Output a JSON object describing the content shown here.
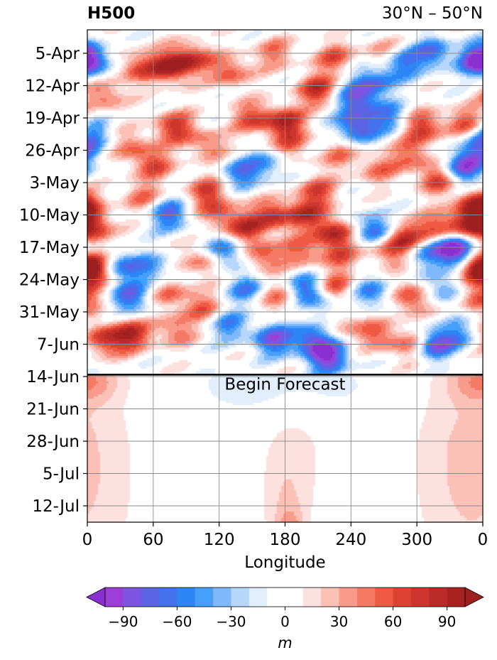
{
  "chart_data": {
    "type": "heatmap",
    "title_left": "H500",
    "title_right": "30°N – 50°N",
    "xlabel": "Longitude",
    "x_ticks": [
      "0",
      "60",
      "120",
      "180",
      "240",
      "300",
      "0"
    ],
    "xlim": [
      0,
      360
    ],
    "y_ticks": [
      "5-Apr",
      "12-Apr",
      "19-Apr",
      "26-Apr",
      "3-May",
      "10-May",
      "17-May",
      "24-May",
      "31-May",
      "7-Jun",
      "14-Jun",
      "21-Jun",
      "28-Jun",
      "5-Jul",
      "12-Jul"
    ],
    "forecast_label": "Begin Forecast",
    "colorbar": {
      "label": "m",
      "ticks": [
        "−90",
        "−60",
        "−30",
        "0",
        "30",
        "60",
        "90"
      ],
      "levels": [
        -100,
        -90,
        -80,
        -70,
        -60,
        -50,
        -40,
        -30,
        -20,
        -10,
        10,
        20,
        30,
        40,
        50,
        60,
        70,
        80,
        90,
        100
      ],
      "colors": [
        "#9b3fd8",
        "#7d55e0",
        "#5c64e6",
        "#4472ef",
        "#2c86f5",
        "#46a0fb",
        "#7fb9fb",
        "#b6d6fb",
        "#e2eefc",
        "#ffffff",
        "#fde1df",
        "#fbc0b6",
        "#f89b8a",
        "#f57a66",
        "#ef5a44",
        "#dd4334",
        "#cc362c",
        "#ba2c27",
        "#a72220"
      ],
      "extend_low": "#8a2fd0",
      "extend_high": "#9e1f1f"
    },
    "blobs": [
      {
        "lon": 0,
        "day": 1,
        "v": -75
      },
      {
        "lon": 45,
        "day": 3,
        "v": 55
      },
      {
        "lon": 75,
        "day": 3,
        "v": 92
      },
      {
        "lon": 95,
        "day": 1,
        "v": 70
      },
      {
        "lon": 15,
        "day": 9,
        "v": 55
      },
      {
        "lon": 130,
        "day": 4,
        "v": 60
      },
      {
        "lon": 170,
        "day": 0,
        "v": 45
      },
      {
        "lon": 225,
        "day": 1,
        "v": 55
      },
      {
        "lon": 270,
        "day": 0,
        "v": 45
      },
      {
        "lon": 285,
        "day": 2,
        "v": -70
      },
      {
        "lon": 315,
        "day": 0,
        "v": -65
      },
      {
        "lon": 358,
        "day": 2,
        "v": -60
      },
      {
        "lon": 260,
        "day": 6,
        "v": -65
      },
      {
        "lon": 210,
        "day": 8,
        "v": 80
      },
      {
        "lon": 245,
        "day": 10,
        "v": -80
      },
      {
        "lon": 180,
        "day": 15,
        "v": 85
      },
      {
        "lon": 150,
        "day": 14,
        "v": 60
      },
      {
        "lon": 80,
        "day": 16,
        "v": 75
      },
      {
        "lon": 110,
        "day": 20,
        "v": 50
      },
      {
        "lon": 245,
        "day": 16,
        "v": -85
      },
      {
        "lon": 275,
        "day": 14,
        "v": -55
      },
      {
        "lon": 305,
        "day": 16,
        "v": 75
      },
      {
        "lon": 345,
        "day": 15,
        "v": 65
      },
      {
        "lon": 340,
        "day": 25,
        "v": -90
      },
      {
        "lon": 355,
        "day": 21,
        "v": -60
      },
      {
        "lon": 5,
        "day": 17,
        "v": -55
      },
      {
        "lon": 40,
        "day": 20,
        "v": 45
      },
      {
        "lon": 60,
        "day": 24,
        "v": 60
      },
      {
        "lon": 110,
        "day": 30,
        "v": 65
      },
      {
        "lon": 140,
        "day": 26,
        "v": -60
      },
      {
        "lon": 165,
        "day": 24,
        "v": -45
      },
      {
        "lon": 185,
        "day": 20,
        "v": 45
      },
      {
        "lon": 230,
        "day": 22,
        "v": 40
      },
      {
        "lon": 265,
        "day": 25,
        "v": 45
      },
      {
        "lon": 295,
        "day": 22,
        "v": 50
      },
      {
        "lon": 355,
        "day": 33,
        "v": 95
      },
      {
        "lon": 320,
        "day": 27,
        "v": 75
      },
      {
        "lon": 5,
        "day": 38,
        "v": 75
      },
      {
        "lon": 75,
        "day": 35,
        "v": -70
      },
      {
        "lon": 50,
        "day": 31,
        "v": 45
      },
      {
        "lon": 120,
        "day": 35,
        "v": 55
      },
      {
        "lon": 145,
        "day": 38,
        "v": 70
      },
      {
        "lon": 170,
        "day": 35,
        "v": 75
      },
      {
        "lon": 200,
        "day": 35,
        "v": 65
      },
      {
        "lon": 225,
        "day": 39,
        "v": 85
      },
      {
        "lon": 260,
        "day": 38,
        "v": -75
      },
      {
        "lon": 290,
        "day": 40,
        "v": 80
      },
      {
        "lon": 320,
        "day": 38,
        "v": 70
      },
      {
        "lon": 345,
        "day": 37,
        "v": 55
      },
      {
        "lon": 210,
        "day": 30,
        "v": 60
      },
      {
        "lon": 0,
        "day": 46,
        "v": 95
      },
      {
        "lon": 30,
        "day": 46,
        "v": -60
      },
      {
        "lon": 60,
        "day": 47,
        "v": -50
      },
      {
        "lon": 105,
        "day": 45,
        "v": 55
      },
      {
        "lon": 125,
        "day": 43,
        "v": -75
      },
      {
        "lon": 160,
        "day": 44,
        "v": 60
      },
      {
        "lon": 195,
        "day": 43,
        "v": 50
      },
      {
        "lon": 230,
        "day": 44,
        "v": 45
      },
      {
        "lon": 275,
        "day": 43,
        "v": 50
      },
      {
        "lon": 305,
        "day": 43,
        "v": -50
      },
      {
        "lon": 330,
        "day": 42,
        "v": -60
      },
      {
        "lon": 340,
        "day": 43,
        "v": -90
      },
      {
        "lon": 360,
        "day": 47,
        "v": 70
      },
      {
        "lon": 40,
        "day": 53,
        "v": -70
      },
      {
        "lon": 75,
        "day": 52,
        "v": 50
      },
      {
        "lon": 105,
        "day": 55,
        "v": 50
      },
      {
        "lon": 145,
        "day": 51,
        "v": -55
      },
      {
        "lon": 175,
        "day": 53,
        "v": 50
      },
      {
        "lon": 200,
        "day": 51,
        "v": -75
      },
      {
        "lon": 220,
        "day": 55,
        "v": -55
      },
      {
        "lon": 225,
        "day": 51,
        "v": 70
      },
      {
        "lon": 260,
        "day": 52,
        "v": -60
      },
      {
        "lon": 295,
        "day": 53,
        "v": 70
      },
      {
        "lon": 325,
        "day": 51,
        "v": -55
      },
      {
        "lon": 355,
        "day": 53,
        "v": 60
      },
      {
        "lon": 15,
        "day": 62,
        "v": 75
      },
      {
        "lon": 40,
        "day": 61,
        "v": 80
      },
      {
        "lon": 80,
        "day": 60,
        "v": 50
      },
      {
        "lon": 130,
        "day": 59,
        "v": -55
      },
      {
        "lon": 170,
        "day": 62,
        "v": -80
      },
      {
        "lon": 205,
        "day": 62,
        "v": -80
      },
      {
        "lon": 220,
        "day": 66,
        "v": -95
      },
      {
        "lon": 265,
        "day": 61,
        "v": 55
      },
      {
        "lon": 295,
        "day": 63,
        "v": 50
      },
      {
        "lon": 315,
        "day": 63,
        "v": -85
      },
      {
        "lon": 340,
        "day": 61,
        "v": -45
      },
      {
        "lon": 230,
        "day": 58,
        "v": 50
      }
    ],
    "forecast_blobs": [
      {
        "lon": 180,
        "day": 72,
        "v": -20,
        "sx": 60,
        "sy": 5
      },
      {
        "lon": 0,
        "day": 71,
        "v": 15,
        "sx": 20,
        "sy": 3
      },
      {
        "lon": 360,
        "day": 71,
        "v": 15,
        "sx": 20,
        "sy": 3
      },
      {
        "lon": 190,
        "day": 84,
        "v": 12,
        "sx": 25,
        "sy": 14
      },
      {
        "lon": 180,
        "day": 100,
        "v": 14,
        "sx": 15,
        "sy": 10
      },
      {
        "lon": 185,
        "day": 105,
        "v": 30,
        "sx": 8,
        "sy": 4
      },
      {
        "lon": 345,
        "day": 85,
        "v": 13,
        "sx": 35,
        "sy": 18
      },
      {
        "lon": 355,
        "day": 95,
        "v": 12,
        "sx": 40,
        "sy": 20
      }
    ]
  }
}
